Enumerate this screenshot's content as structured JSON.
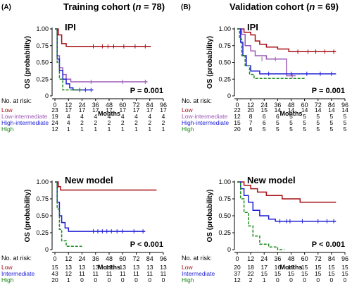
{
  "panels": [
    {
      "letter": "(A)",
      "title": "Training cohort (",
      "n_label": "n",
      "n_value": " = 78)"
    },
    {
      "letter": "(B)",
      "title": "Validation cohort (",
      "n_label": "n",
      "n_value": " = 69)"
    }
  ],
  "colors": {
    "Low": "#a50f15",
    "Low-intermediate": "#9b59b6",
    "High-intermediate": "#1f1fd6",
    "Intermediate": "#1f1fd6",
    "High": "#1b8a1b"
  },
  "chart_data": [
    {
      "type": "line",
      "id": "A-IPI",
      "title": "IPI",
      "xlabel": "Months",
      "ylabel": "OS (probability)",
      "xlim": [
        0,
        96
      ],
      "ylim": [
        0,
        1
      ],
      "xticks": [
        "0",
        "12",
        "24",
        "36",
        "48",
        "60",
        "72",
        "84",
        "96"
      ],
      "yticks": [
        "0",
        "0.25",
        "0.50",
        "0.75",
        "1.00"
      ],
      "pvalue": "P = 0.001",
      "risk_header": "No. at risk:",
      "series": [
        {
          "name": "Low",
          "dashed": false,
          "points": [
            [
              0,
              1
            ],
            [
              3,
              0.91
            ],
            [
              6,
              0.78
            ],
            [
              10,
              0.74
            ],
            [
              85,
              0.74
            ]
          ],
          "censor": [
            [
              34,
              0.74
            ],
            [
              42,
              0.74
            ],
            [
              47,
              0.74
            ],
            [
              52,
              0.74
            ],
            [
              61,
              0.74
            ],
            [
              71,
              0.74
            ],
            [
              80,
              0.74
            ]
          ],
          "risk": [
            "23",
            "17",
            "17",
            "17",
            "17",
            "17",
            "17",
            "17",
            "17"
          ]
        },
        {
          "name": "Low-intermediate",
          "dashed": false,
          "points": [
            [
              0,
              1
            ],
            [
              2,
              0.6
            ],
            [
              4,
              0.42
            ],
            [
              7,
              0.32
            ],
            [
              10,
              0.25
            ],
            [
              14,
              0.21
            ],
            [
              82,
              0.21
            ]
          ],
          "censor": [
            [
              32,
              0.21
            ],
            [
              60,
              0.21
            ],
            [
              80,
              0.21
            ]
          ],
          "risk": [
            "19",
            "4",
            "4",
            "4",
            "4",
            "4",
            "4",
            "4",
            "4"
          ]
        },
        {
          "name": "High-intermediate",
          "dashed": false,
          "points": [
            [
              0,
              1
            ],
            [
              2,
              0.55
            ],
            [
              4,
              0.38
            ],
            [
              7,
              0.25
            ],
            [
              10,
              0.18
            ],
            [
              13,
              0.12
            ],
            [
              16,
              0.09
            ],
            [
              34,
              0.09
            ]
          ],
          "censor": [
            [
              22,
              0.09
            ],
            [
              27,
              0.09
            ],
            [
              32,
              0.09
            ]
          ],
          "risk": [
            "24",
            "4",
            "2",
            "2",
            "2",
            "2",
            "2",
            "2",
            "2"
          ]
        },
        {
          "name": "High",
          "dashed": true,
          "points": [
            [
              0,
              1
            ],
            [
              2,
              0.5
            ],
            [
              4,
              0.25
            ],
            [
              7,
              0.09
            ],
            [
              25,
              0.09
            ]
          ],
          "censor": [],
          "risk": [
            "12",
            "1",
            "1",
            "1",
            "1",
            "1",
            "1",
            "1",
            "1"
          ]
        }
      ]
    },
    {
      "type": "line",
      "id": "B-IPI",
      "title": "IPI",
      "xlabel": "Months",
      "ylabel": "OS (probability)",
      "xlim": [
        0,
        96
      ],
      "ylim": [
        0,
        1
      ],
      "xticks": [
        "0",
        "12",
        "24",
        "36",
        "48",
        "60",
        "72",
        "84",
        "96"
      ],
      "yticks": [
        "0",
        "0.25",
        "0.50",
        "0.75",
        "1.00"
      ],
      "pvalue": "P = 0.001",
      "risk_header": "No. at risk:",
      "series": [
        {
          "name": "Low",
          "dashed": false,
          "points": [
            [
              0,
              1
            ],
            [
              6,
              0.95
            ],
            [
              12,
              0.91
            ],
            [
              16,
              0.82
            ],
            [
              20,
              0.77
            ],
            [
              26,
              0.73
            ],
            [
              36,
              0.7
            ],
            [
              46,
              0.66
            ],
            [
              88,
              0.66
            ]
          ],
          "censor": [
            [
              54,
              0.66
            ],
            [
              63,
              0.66
            ],
            [
              70,
              0.66
            ],
            [
              78,
              0.66
            ],
            [
              86,
              0.66
            ]
          ],
          "risk": [
            "22",
            "20",
            "15",
            "14",
            "14",
            "14",
            "14",
            "14",
            "14"
          ]
        },
        {
          "name": "Low-intermediate",
          "dashed": false,
          "points": [
            [
              0,
              1
            ],
            [
              4,
              0.92
            ],
            [
              7,
              0.75
            ],
            [
              12,
              0.67
            ],
            [
              16,
              0.6
            ],
            [
              26,
              0.55
            ],
            [
              44,
              0.3
            ],
            [
              52,
              0.3
            ]
          ],
          "censor": [
            [
              22,
              0.55
            ],
            [
              34,
              0.55
            ],
            [
              49,
              0.3
            ]
          ],
          "risk": [
            "12",
            "8",
            "6",
            "6",
            "5",
            "5",
            "5",
            "5",
            "5"
          ]
        },
        {
          "name": "High-intermediate",
          "dashed": false,
          "points": [
            [
              0,
              1
            ],
            [
              3,
              0.8
            ],
            [
              5,
              0.6
            ],
            [
              8,
              0.45
            ],
            [
              12,
              0.37
            ],
            [
              20,
              0.33
            ],
            [
              40,
              0.33
            ],
            [
              88,
              0.33
            ]
          ],
          "censor": [
            [
              28,
              0.33
            ],
            [
              48,
              0.33
            ],
            [
              62,
              0.33
            ],
            [
              74,
              0.33
            ],
            [
              84,
              0.33
            ]
          ],
          "risk": [
            "15",
            "7",
            "6",
            "5",
            "5",
            "5",
            "5",
            "5",
            "5"
          ]
        },
        {
          "name": "High",
          "dashed": true,
          "points": [
            [
              0,
              1
            ],
            [
              2,
              0.85
            ],
            [
              4,
              0.6
            ],
            [
              7,
              0.45
            ],
            [
              11,
              0.32
            ],
            [
              15,
              0.26
            ],
            [
              60,
              0.26
            ]
          ],
          "censor": [],
          "risk": [
            "20",
            "6",
            "5",
            "5",
            "5",
            "5",
            "5",
            "5",
            "5"
          ]
        }
      ]
    },
    {
      "type": "line",
      "id": "A-New",
      "title": "New model",
      "xlabel": "Months",
      "ylabel": "OS (probability)",
      "xlim": [
        0,
        96
      ],
      "ylim": [
        0,
        1
      ],
      "xticks": [
        "0",
        "12",
        "24",
        "36",
        "48",
        "60",
        "72",
        "84",
        "96"
      ],
      "yticks": [
        "0",
        "0.25",
        "0.50",
        "0.75",
        "1.00"
      ],
      "pvalue": "P < 0.001",
      "risk_header": "No. at risk:",
      "series": [
        {
          "name": "Low",
          "dashed": false,
          "points": [
            [
              0,
              1
            ],
            [
              3,
              0.93
            ],
            [
              5,
              0.88
            ],
            [
              90,
              0.88
            ]
          ],
          "censor": [],
          "risk": [
            "15",
            "13",
            "13",
            "13",
            "13",
            "13",
            "13",
            "13",
            "13"
          ]
        },
        {
          "name": "Intermediate",
          "dashed": false,
          "points": [
            [
              0,
              1
            ],
            [
              2,
              0.7
            ],
            [
              4,
              0.5
            ],
            [
              6,
              0.4
            ],
            [
              9,
              0.32
            ],
            [
              12,
              0.27
            ],
            [
              80,
              0.27
            ]
          ],
          "censor": [
            [
              34,
              0.27
            ],
            [
              38,
              0.27
            ],
            [
              42,
              0.27
            ],
            [
              46,
              0.27
            ],
            [
              50,
              0.27
            ],
            [
              55,
              0.27
            ],
            [
              60,
              0.27
            ],
            [
              70,
              0.27
            ],
            [
              78,
              0.27
            ]
          ],
          "risk": [
            "43",
            "12",
            "11",
            "11",
            "11",
            "11",
            "11",
            "11",
            "11"
          ]
        },
        {
          "name": "High",
          "dashed": true,
          "points": [
            [
              0,
              1
            ],
            [
              2,
              0.6
            ],
            [
              4,
              0.3
            ],
            [
              6,
              0.13
            ],
            [
              10,
              0.05
            ],
            [
              24,
              0.05
            ]
          ],
          "censor": [],
          "risk": [
            "20",
            "1",
            "0",
            "0",
            "0",
            "0",
            "0",
            "0",
            "0"
          ]
        }
      ]
    },
    {
      "type": "line",
      "id": "B-New",
      "title": "New model",
      "xlabel": "Months",
      "ylabel": "OS (probability)",
      "xlim": [
        0,
        96
      ],
      "ylim": [
        0,
        1
      ],
      "xticks": [
        "0",
        "12",
        "24",
        "36",
        "48",
        "60",
        "72",
        "84",
        "96"
      ],
      "yticks": [
        "0",
        "0.25",
        "0.50",
        "0.75",
        "1.00"
      ],
      "pvalue": "P < 0.001",
      "risk_header": "No. at risk:",
      "series": [
        {
          "name": "Low",
          "dashed": false,
          "points": [
            [
              0,
              1
            ],
            [
              6,
              0.95
            ],
            [
              12,
              0.9
            ],
            [
              18,
              0.85
            ],
            [
              26,
              0.8
            ],
            [
              40,
              0.75
            ],
            [
              56,
              0.7
            ],
            [
              88,
              0.7
            ]
          ],
          "censor": [],
          "risk": [
            "20",
            "18",
            "17",
            "16",
            "15",
            "15",
            "15",
            "15",
            "15"
          ]
        },
        {
          "name": "Intermediate",
          "dashed": false,
          "points": [
            [
              0,
              1
            ],
            [
              3,
              0.9
            ],
            [
              6,
              0.8
            ],
            [
              10,
              0.7
            ],
            [
              14,
              0.58
            ],
            [
              20,
              0.5
            ],
            [
              28,
              0.45
            ],
            [
              34,
              0.42
            ],
            [
              88,
              0.42
            ]
          ],
          "censor": [
            [
              38,
              0.42
            ],
            [
              44,
              0.42
            ],
            [
              47,
              0.42
            ],
            [
              58,
              0.42
            ],
            [
              72,
              0.42
            ],
            [
              80,
              0.42
            ],
            [
              86,
              0.42
            ]
          ],
          "risk": [
            "37",
            "22",
            "15",
            "15",
            "15",
            "15",
            "15",
            "15",
            "15"
          ]
        },
        {
          "name": "High",
          "dashed": true,
          "points": [
            [
              0,
              1
            ],
            [
              3,
              0.75
            ],
            [
              6,
              0.55
            ],
            [
              10,
              0.35
            ],
            [
              14,
              0.2
            ],
            [
              20,
              0.08
            ],
            [
              28,
              0.04
            ],
            [
              36,
              0
            ],
            [
              42,
              0
            ]
          ],
          "censor": [],
          "risk": [
            "12",
            "2",
            "1",
            "0",
            "0",
            "0",
            "0",
            "0",
            "0"
          ]
        }
      ]
    }
  ]
}
